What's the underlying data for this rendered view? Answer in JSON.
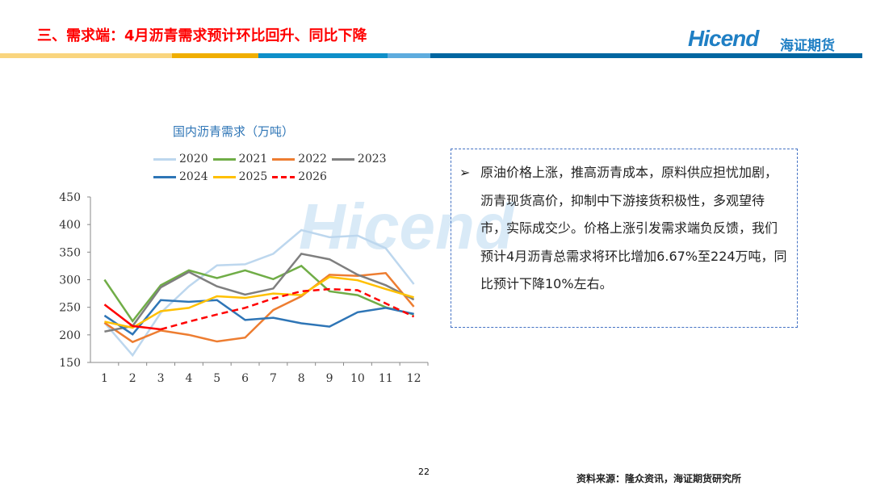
{
  "header": {
    "title": "三、需求端：4月沥青需求预计环比回升、同比下降",
    "logo_text": "Hicend",
    "logo_cn": "海证期货"
  },
  "brand_bar_colors": [
    "#f9d57e",
    "#f0ae00",
    "#0e8fc9",
    "#5eacde",
    "#0066a1"
  ],
  "chart_data": {
    "type": "line",
    "title": "国内沥青需求（万吨）",
    "categories": [
      "1",
      "2",
      "3",
      "4",
      "5",
      "6",
      "7",
      "8",
      "9",
      "10",
      "11",
      "12"
    ],
    "ylim": [
      150,
      450
    ],
    "yticks": [
      "150",
      "200",
      "250",
      "300",
      "350",
      "400",
      "450"
    ],
    "legend_placement": "top",
    "series": [
      {
        "name": "2020",
        "color": "#bdd7ee",
        "values": [
          222,
          163,
          240,
          288,
          326,
          328,
          347,
          390,
          377,
          380,
          357,
          292
        ]
      },
      {
        "name": "2021",
        "color": "#70ad47",
        "values": [
          300,
          225,
          290,
          317,
          303,
          317,
          301,
          325,
          279,
          272,
          250,
          237
        ]
      },
      {
        "name": "2022",
        "color": "#ed7d31",
        "values": [
          222,
          187,
          208,
          200,
          188,
          195,
          245,
          270,
          309,
          307,
          312,
          251
        ]
      },
      {
        "name": "2023",
        "color": "#7f7f7f",
        "values": [
          206,
          216,
          286,
          314,
          288,
          273,
          284,
          347,
          337,
          309,
          290,
          264
        ]
      },
      {
        "name": "2024",
        "color": "#2e75b6",
        "values": [
          235,
          201,
          263,
          260,
          263,
          227,
          231,
          221,
          215,
          241,
          249,
          238
        ]
      },
      {
        "name": "2025",
        "color": "#ffc000",
        "values": [
          224,
          213,
          243,
          249,
          270,
          267,
          275,
          272,
          305,
          299,
          283,
          268
        ]
      },
      {
        "name": "2026",
        "color": "#ff0000",
        "dashed": true,
        "values": [
          255,
          216,
          210,
          224,
          237,
          249,
          266,
          279,
          283,
          281,
          257,
          233
        ]
      }
    ]
  },
  "watermark": "Hicend 海证期货",
  "textbox": {
    "bullet": "➢",
    "text": "原油价格上涨，推高沥青成本，原料供应担忧加剧，沥青现货高价，抑制中下游接货积极性，多观望待市，实际成交少。价格上涨引发需求端负反馈，我们预计4月沥青总需求将环比增加6.67%至224万吨，同比预计下降10%左右。"
  },
  "footer": {
    "page": "22",
    "source": "资料来源：隆众资讯，海证期货研究所"
  }
}
